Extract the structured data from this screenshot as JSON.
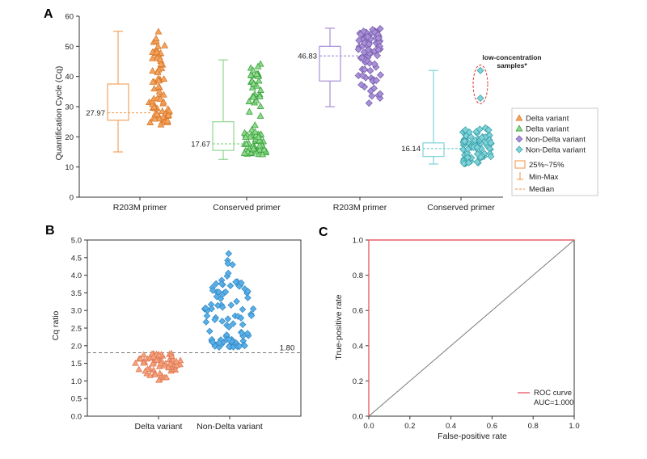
{
  "colors": {
    "orange": "#f4a460",
    "orange_edge": "#d97a2b",
    "green": "#90d890",
    "green_edge": "#3aa33a",
    "purple": "#a98fd6",
    "purple_edge": "#7058a8",
    "cyan": "#7fd3d8",
    "cyan_edge": "#2f9aa3",
    "salmon": "#f4a37f",
    "blue": "#5ab0e6",
    "roc_red": "#e8606a"
  },
  "chart_data": [
    {
      "panel": "A",
      "type": "scatter",
      "ylabel": "Quantification Cycle (Cq)",
      "ylim": [
        0,
        60
      ],
      "yticks": [
        0,
        10,
        20,
        30,
        40,
        50,
        60
      ],
      "categories": [
        "R203M primer",
        "Conserved primer",
        "R203M primer",
        "Conserved primer"
      ],
      "groups": [
        {
          "series": "Delta variant",
          "marker": "triangle",
          "color": "orange",
          "min": 15,
          "max": 55,
          "q1": 25.5,
          "q3": 37.5,
          "median": 27.97,
          "median_label": "27.97"
        },
        {
          "series": "Delta variant",
          "marker": "triangle",
          "color": "green",
          "min": 12.5,
          "max": 45.5,
          "q1": 15.5,
          "q3": 25.0,
          "median": 17.67,
          "median_label": "17.67"
        },
        {
          "series": "Non-Delta variant",
          "marker": "diamond",
          "color": "purple",
          "min": 30,
          "max": 56,
          "q1": 38.5,
          "q3": 50,
          "median": 46.83,
          "median_label": "46.83"
        },
        {
          "series": "Non-Delta variant",
          "marker": "diamond",
          "color": "cyan",
          "min": 11,
          "max": 42,
          "q1": 13.5,
          "q3": 18,
          "median": 16.14,
          "median_label": "16.14"
        }
      ],
      "annotation": "low-concentration samples*",
      "low_conc_values": [
        32.8,
        42.0
      ],
      "legend": {
        "items": [
          "Delta variant",
          "Delta variant",
          "Non-Delta variant",
          "Non-Delta variant"
        ],
        "box_label": "25%~75%",
        "whisker_label": "Min-Max",
        "median_label": "Median"
      }
    },
    {
      "panel": "B",
      "type": "scatter",
      "ylabel": "Cq ratio",
      "ylim": [
        0,
        5.0
      ],
      "yticks": [
        "0.0",
        "0.5",
        "1.0",
        "1.5",
        "2.0",
        "2.5",
        "3.0",
        "3.5",
        "4.0",
        "4.5",
        "5.0"
      ],
      "categories": [
        "Delta variant",
        "Non-Delta variant"
      ],
      "groups": [
        {
          "series": "Delta variant",
          "min": 1.0,
          "max": 1.8,
          "center": 1.52
        },
        {
          "series": "Non-Delta variant",
          "min": 1.95,
          "max": 4.8,
          "center": 2.85
        }
      ],
      "threshold": 1.8,
      "threshold_label": "1.80"
    },
    {
      "panel": "C",
      "type": "line",
      "xlabel": "False-positive rate",
      "ylabel": "True-positive rate",
      "xlim": [
        0,
        1.0
      ],
      "ylim": [
        0,
        1.0
      ],
      "xticks": [
        "0.0",
        "0.2",
        "0.4",
        "0.6",
        "0.8",
        "1.0"
      ],
      "yticks": [
        "0.0",
        "0.2",
        "0.4",
        "0.6",
        "0.8",
        "1.0"
      ],
      "series": [
        {
          "name": "ROC curve",
          "x": [
            0,
            0,
            1
          ],
          "y": [
            0,
            1,
            1
          ]
        },
        {
          "x": [
            0,
            1
          ],
          "y": [
            0,
            1
          ]
        }
      ],
      "legend_label": "ROC curve",
      "auc_label": "AUC=1.000"
    }
  ]
}
